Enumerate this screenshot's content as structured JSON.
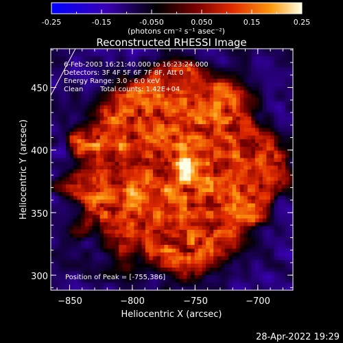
{
  "colorbar": {
    "ticks": [
      "-0.25",
      "-0.15",
      "-0.050",
      "0.050",
      "0.15",
      "0.25"
    ],
    "units_line": "(photons cm⁻² s⁻¹ asec⁻²)",
    "range": [
      -0.25,
      0.25
    ],
    "colors": [
      "#0000ff",
      "#3a00b4",
      "#000000",
      "#7a0000",
      "#e02a00",
      "#ff9a10",
      "#ffffe6"
    ]
  },
  "annotation": {
    "line1": "6-Feb-2003 16:21:40.000 to 16:23:24.000",
    "line2": "Detectors: 3F 4F 5F 6F 7F 8F, Att 0",
    "line3": "Energy Range: 3.0 - 6.0 keV",
    "line4a": "Clean",
    "line4b": "Total counts: 1.42E+04",
    "peak": "Position of Peak = [-755,386]"
  },
  "footer": {
    "timestamp": "28-Apr-2022 19:29"
  },
  "chart_data": {
    "type": "heatmap",
    "title": "Reconstructed RHESSI Image",
    "xlabel": "Heliocentric X (arcsec)",
    "ylabel": "Heliocentric Y (arcsec)",
    "xlim": [
      -865,
      -672
    ],
    "ylim": [
      288,
      481
    ],
    "xticks": [
      -850,
      -800,
      -750,
      -700
    ],
    "yticks": [
      300,
      350,
      400,
      450
    ],
    "xtick_labels": [
      "−850",
      "−800",
      "−750",
      "−700"
    ],
    "ytick_labels": [
      "300",
      "350",
      "400",
      "450"
    ],
    "peak": {
      "x": -755,
      "y": 386
    },
    "time_range": "6-Feb-2003 16:21:40.000 to 16:23:24.000",
    "energy_range_keV": [
      3.0,
      6.0
    ],
    "total_counts": 14200,
    "colorscale_range": [
      -0.25,
      0.25
    ],
    "disk_region": {
      "center": [
        -766,
        384
      ],
      "radius_arcsec": 83,
      "level": 0.11,
      "outside_level": -0.1
    },
    "grid": false,
    "limb_arc": true
  }
}
